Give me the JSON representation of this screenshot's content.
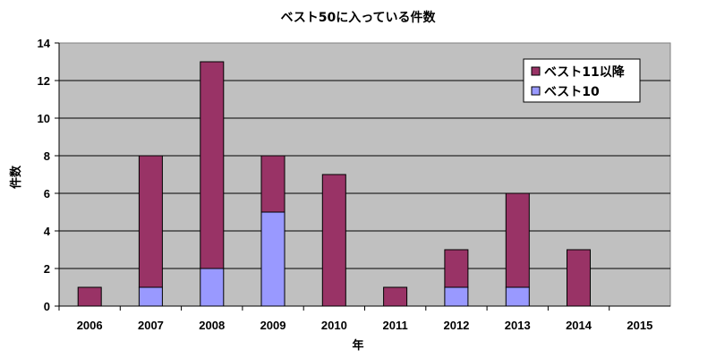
{
  "chart_data": {
    "type": "bar",
    "stacked": true,
    "title": "ベスト50に入っている件数",
    "xlabel": "年",
    "ylabel": "件数",
    "categories": [
      "2006",
      "2007",
      "2008",
      "2009",
      "2010",
      "2011",
      "2012",
      "2013",
      "2014",
      "2015"
    ],
    "ylim": [
      0,
      14
    ],
    "yticks": [
      "0",
      "2",
      "4",
      "6",
      "8",
      "10",
      "12",
      "14"
    ],
    "grid": true,
    "legend_position": "top-right",
    "series": [
      {
        "name": "ベスト10",
        "color": "#9999ff",
        "values": [
          0,
          1,
          2,
          5,
          0,
          0,
          1,
          1,
          0,
          0
        ]
      },
      {
        "name": "ベスト11以降",
        "color": "#993366",
        "values": [
          1,
          7,
          11,
          3,
          7,
          1,
          2,
          5,
          3,
          0
        ]
      }
    ],
    "legend_order": [
      1,
      0
    ],
    "plot_background": "#c0c0c0"
  }
}
